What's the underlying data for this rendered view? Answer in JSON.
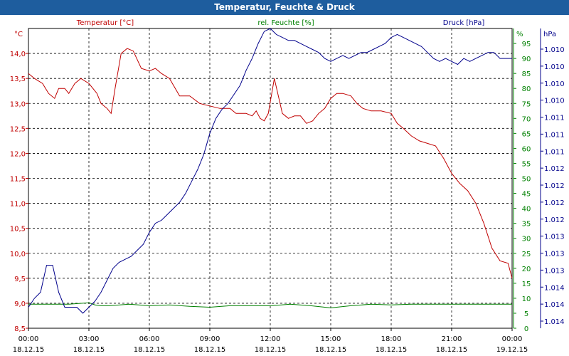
{
  "window": {
    "title": "Temperatur, Feuchte & Druck"
  },
  "legend": {
    "temp": "Temperatur [°C]",
    "hum": "rel. Feuchte [%]",
    "press": "Druck [hPa]"
  },
  "axes": {
    "temp_unit": "°C",
    "hum_unit": "%",
    "press_unit": "hPa"
  },
  "colors": {
    "temp": "#c00000",
    "hum": "#008000",
    "press": "#00008b",
    "title_bg": "#1e5d9e"
  },
  "chart_data": {
    "type": "line",
    "title": "Temperatur, Feuchte & Druck",
    "x": {
      "range_hours": [
        0,
        24
      ],
      "ticks": [
        {
          "time": "00:00",
          "date": "18.12.15"
        },
        {
          "time": "03:00",
          "date": "18.12.15"
        },
        {
          "time": "06:00",
          "date": "18.12.15"
        },
        {
          "time": "09:00",
          "date": "18.12.15"
        },
        {
          "time": "12:00",
          "date": "18.12.15"
        },
        {
          "time": "15:00",
          "date": "18.12.15"
        },
        {
          "time": "18:00",
          "date": "18.12.15"
        },
        {
          "time": "21:00",
          "date": "18.12.15"
        },
        {
          "time": "00:00",
          "date": "19.12.15"
        }
      ]
    },
    "y_left": {
      "label": "°C",
      "range": [
        8.5,
        14.5
      ],
      "ticks": [
        "14,0",
        "13,5",
        "13,0",
        "12,5",
        "12,0",
        "11,5",
        "11,0",
        "10,5",
        "10,0",
        "9,5",
        "9,0",
        "8,5"
      ],
      "tick_values": [
        14.0,
        13.5,
        13.0,
        12.5,
        12.0,
        11.5,
        11.0,
        10.5,
        10.0,
        9.5,
        9.0,
        8.5
      ]
    },
    "y_right1": {
      "label": "%",
      "range": [
        0,
        100
      ],
      "ticks": [
        "95",
        "90",
        "85",
        "80",
        "75",
        "70",
        "65",
        "60",
        "55",
        "50",
        "45",
        "40",
        "35",
        "30",
        "25",
        "20",
        "15",
        "10",
        "5",
        "0"
      ],
      "tick_values": [
        95,
        90,
        85,
        80,
        75,
        70,
        65,
        60,
        55,
        50,
        45,
        40,
        35,
        30,
        25,
        20,
        15,
        10,
        5,
        0
      ]
    },
    "y_right2": {
      "label": "hPa",
      "range": [
        0,
        10
      ],
      "ticks": [
        "1.014",
        "1.014",
        "1.014",
        "1.013",
        "1.013",
        "1.013",
        "1.012",
        "1.012",
        "1.012",
        "1.012",
        "1.011",
        "1.011",
        "1.011",
        "1.010",
        "1.010",
        "1.010",
        "1.010"
      ],
      "note": "printed labels are coarse; series values given in relative units 0-10"
    },
    "series": [
      {
        "name": "Temperatur [°C]",
        "axis": "y_left",
        "x": [
          0,
          0.3,
          0.7,
          1.0,
          1.3,
          1.5,
          1.8,
          2.0,
          2.3,
          2.6,
          3.0,
          3.4,
          3.6,
          3.9,
          4.1,
          4.3,
          4.6,
          4.9,
          5.2,
          5.6,
          6.0,
          6.3,
          6.6,
          7.0,
          7.5,
          8.0,
          8.5,
          9.0,
          9.5,
          10.0,
          10.3,
          10.6,
          10.8,
          11.1,
          11.3,
          11.5,
          11.7,
          11.9,
          12.2,
          12.6,
          12.9,
          13.2,
          13.5,
          13.8,
          14.1,
          14.4,
          14.7,
          15.0,
          15.3,
          15.6,
          16.0,
          16.3,
          16.6,
          17.0,
          17.5,
          18.0,
          18.3,
          18.6,
          19.0,
          19.4,
          19.8,
          20.2,
          20.6,
          21.0,
          21.4,
          21.8,
          22.2,
          22.6,
          23.0,
          23.4,
          23.8,
          24.0
        ],
        "values": [
          13.6,
          13.5,
          13.4,
          13.2,
          13.1,
          13.3,
          13.3,
          13.2,
          13.4,
          13.5,
          13.4,
          13.2,
          13.0,
          12.9,
          12.8,
          13.3,
          14.0,
          14.1,
          14.05,
          13.7,
          13.65,
          13.7,
          13.6,
          13.5,
          13.15,
          13.15,
          13.0,
          12.95,
          12.9,
          12.9,
          12.8,
          12.8,
          12.8,
          12.75,
          12.85,
          12.7,
          12.65,
          12.8,
          13.5,
          12.8,
          12.7,
          12.75,
          12.75,
          12.6,
          12.65,
          12.8,
          12.9,
          13.1,
          13.2,
          13.2,
          13.15,
          13.0,
          12.9,
          12.85,
          12.85,
          12.8,
          12.6,
          12.5,
          12.35,
          12.25,
          12.2,
          12.15,
          11.9,
          11.6,
          11.4,
          11.25,
          11.0,
          10.6,
          10.1,
          9.85,
          9.8,
          9.5
        ],
        "color": "#c00000"
      },
      {
        "name": "rel. Feuchte [%]",
        "axis": "y_right1",
        "x": [
          0,
          1,
          2,
          3,
          3.3,
          3.6,
          4,
          5,
          6,
          7,
          8,
          9,
          10,
          11,
          12,
          13,
          14,
          15,
          16,
          17,
          18,
          19,
          20,
          21,
          22,
          23,
          24
        ],
        "values": [
          8,
          8,
          8,
          8.5,
          7.8,
          7.5,
          7.5,
          8,
          7.5,
          7.8,
          7.3,
          7,
          7.5,
          7.5,
          7.5,
          8,
          7.5,
          6.8,
          7.5,
          8,
          7.8,
          8,
          8,
          8,
          8,
          8,
          8
        ],
        "color": "#008000"
      },
      {
        "name": "Druck [hPa]",
        "axis": "y_right2",
        "x": [
          0,
          0.3,
          0.6,
          0.9,
          1.2,
          1.5,
          1.8,
          2.1,
          2.4,
          2.7,
          3.0,
          3.3,
          3.6,
          3.9,
          4.2,
          4.5,
          4.8,
          5.1,
          5.4,
          5.7,
          6.0,
          6.3,
          6.6,
          6.9,
          7.2,
          7.5,
          7.8,
          8.1,
          8.4,
          8.7,
          9.0,
          9.3,
          9.6,
          9.9,
          10.2,
          10.5,
          10.8,
          11.1,
          11.4,
          11.7,
          12.0,
          12.3,
          12.6,
          12.9,
          13.2,
          13.5,
          13.8,
          14.1,
          14.4,
          14.7,
          15.0,
          15.3,
          15.6,
          15.9,
          16.2,
          16.5,
          16.8,
          17.1,
          17.4,
          17.7,
          18.0,
          18.3,
          18.6,
          18.9,
          19.2,
          19.5,
          19.8,
          20.1,
          20.4,
          20.7,
          21.0,
          21.3,
          21.6,
          21.9,
          22.2,
          22.5,
          22.8,
          23.1,
          23.4,
          23.7,
          24.0
        ],
        "values": [
          0.7,
          1.0,
          1.2,
          2.1,
          2.1,
          1.2,
          0.7,
          0.7,
          0.7,
          0.5,
          0.7,
          0.9,
          1.2,
          1.6,
          2.0,
          2.2,
          2.3,
          2.4,
          2.6,
          2.8,
          3.2,
          3.5,
          3.6,
          3.8,
          4.0,
          4.2,
          4.5,
          4.9,
          5.3,
          5.8,
          6.5,
          7.0,
          7.3,
          7.5,
          7.8,
          8.1,
          8.6,
          9.0,
          9.5,
          9.9,
          10.0,
          9.8,
          9.7,
          9.6,
          9.6,
          9.5,
          9.4,
          9.3,
          9.2,
          9.0,
          8.9,
          9.0,
          9.1,
          9.0,
          9.1,
          9.2,
          9.2,
          9.3,
          9.4,
          9.5,
          9.7,
          9.8,
          9.7,
          9.6,
          9.5,
          9.4,
          9.2,
          9.0,
          8.9,
          9.0,
          8.9,
          8.8,
          9.0,
          8.9,
          9.0,
          9.1,
          9.2,
          9.2,
          9.0,
          9.0,
          9.0
        ],
        "color": "#00008b"
      }
    ]
  }
}
